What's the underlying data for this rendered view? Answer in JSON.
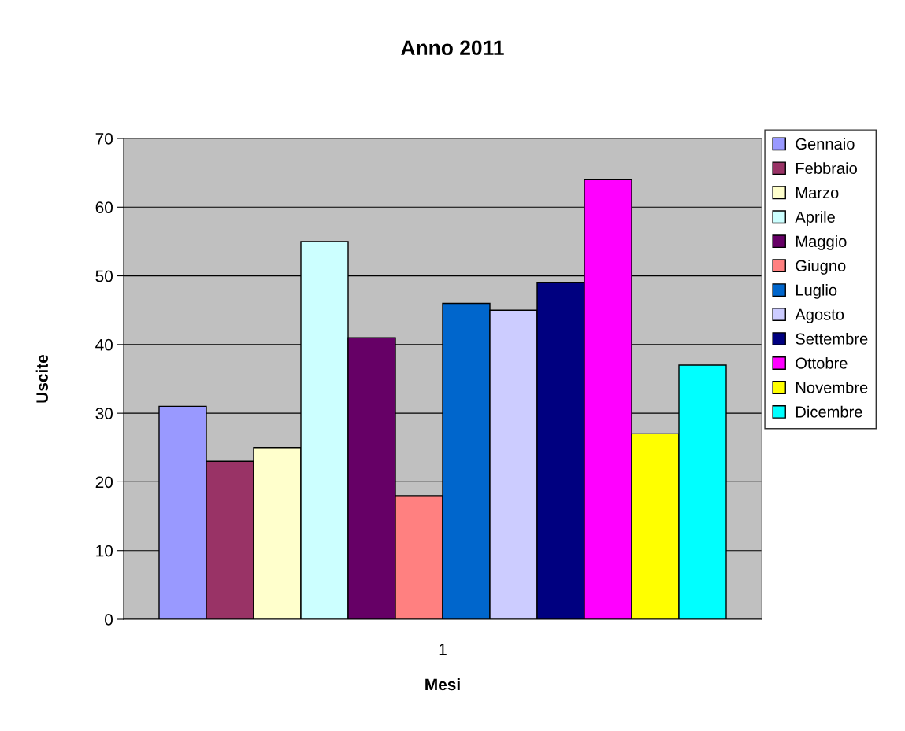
{
  "chart_data": {
    "type": "bar",
    "title": "Anno 2011",
    "xlabel": "Mesi",
    "ylabel": "Uscite",
    "categories": [
      "1"
    ],
    "series": [
      {
        "name": "Gennaio",
        "color": "#9999ff",
        "values": [
          31
        ]
      },
      {
        "name": "Febbraio",
        "color": "#993366",
        "values": [
          23
        ]
      },
      {
        "name": "Marzo",
        "color": "#ffffcc",
        "values": [
          25
        ]
      },
      {
        "name": "Aprile",
        "color": "#ccffff",
        "values": [
          55
        ]
      },
      {
        "name": "Maggio",
        "color": "#660066",
        "values": [
          41
        ]
      },
      {
        "name": "Giugno",
        "color": "#ff8080",
        "values": [
          18
        ]
      },
      {
        "name": "Luglio",
        "color": "#0066cc",
        "values": [
          46
        ]
      },
      {
        "name": "Agosto",
        "color": "#ccccff",
        "values": [
          45
        ]
      },
      {
        "name": "Settembre",
        "color": "#000080",
        "values": [
          49
        ]
      },
      {
        "name": "Ottobre",
        "color": "#ff00ff",
        "values": [
          64
        ]
      },
      {
        "name": "Novembre",
        "color": "#ffff00",
        "values": [
          27
        ]
      },
      {
        "name": "Dicembre",
        "color": "#00ffff",
        "values": [
          37
        ]
      }
    ],
    "ylim": [
      0,
      70
    ],
    "yticks": [
      0,
      10,
      20,
      30,
      40,
      50,
      60,
      70
    ],
    "grid": "y",
    "legend": "right"
  }
}
